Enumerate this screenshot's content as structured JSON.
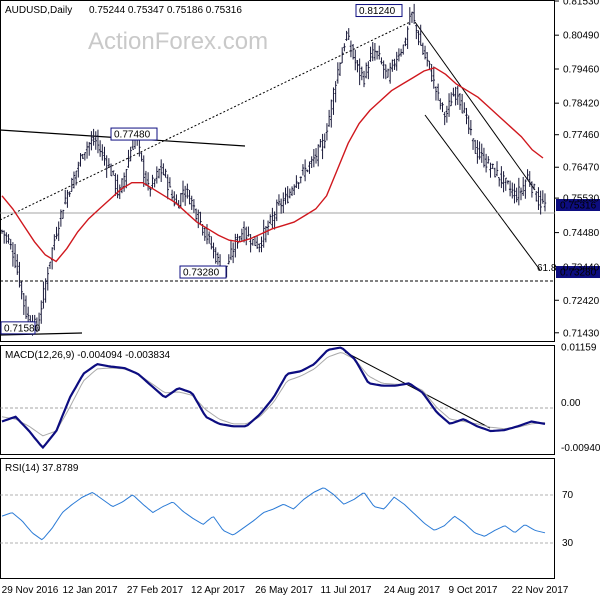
{
  "header": {
    "symbol": "AUDUSD,Daily",
    "ohlc": "0.75244 0.75347 0.75186 0.75316"
  },
  "watermark": "ActionForex.com",
  "colors": {
    "background": "#ffffff",
    "bars": "#1a1a3a",
    "ma": "#d0181e",
    "macd": "#0d0d80",
    "signal": "#aaaaaa",
    "rsi": "#2b7bd6",
    "price_tag_bg": "#0d0d80",
    "box_border": "#0d0d80"
  },
  "chart_data": [
    {
      "type": "ohlc",
      "panel": "price",
      "title": "AUDUSD,Daily",
      "ylim": [
        0.7118,
        0.815
      ],
      "y_ticks": [
        {
          "label": "0.81530",
          "value": 0.8153
        },
        {
          "label": "0.80490",
          "value": 0.8049
        },
        {
          "label": "0.79460",
          "value": 0.7946
        },
        {
          "label": "0.78420",
          "value": 0.7842
        },
        {
          "label": "0.77460",
          "value": 0.7746
        },
        {
          "label": "0.76470",
          "value": 0.7647
        },
        {
          "label": "0.75530",
          "value": 0.7553
        },
        {
          "label": "0.74480",
          "value": 0.7448
        },
        {
          "label": "0.73440",
          "value": 0.7344
        },
        {
          "label": "0.72420",
          "value": 0.7242
        },
        {
          "label": "0.71430",
          "value": 0.7143
        }
      ],
      "x_ticks": [
        "29 Nov 2016",
        "12 Jan 2017",
        "27 Feb 2017",
        "12 Apr 2017",
        "26 May 2017",
        "11 Jul 2017",
        "24 Aug 2017",
        "9 Oct 2017",
        "22 Nov 2017"
      ],
      "close_path": [
        0.7452,
        0.7428,
        0.738,
        0.73,
        0.7206,
        0.7175,
        0.716,
        0.725,
        0.735,
        0.743,
        0.75,
        0.7562,
        0.76,
        0.7652,
        0.77,
        0.772,
        0.773,
        0.769,
        0.766,
        0.762,
        0.756,
        0.7625,
        0.77,
        0.774,
        0.765,
        0.758,
        0.76,
        0.764,
        0.762,
        0.756,
        0.753,
        0.758,
        0.756,
        0.752,
        0.748,
        0.744,
        0.74,
        0.736,
        0.733,
        0.7368,
        0.742,
        0.745,
        0.744,
        0.742,
        0.741,
        0.745,
        0.748,
        0.752,
        0.754,
        0.756,
        0.76,
        0.762,
        0.764,
        0.766,
        0.769,
        0.772,
        0.78,
        0.79,
        0.798,
        0.805,
        0.799,
        0.794,
        0.792,
        0.798,
        0.8,
        0.796,
        0.792,
        0.796,
        0.8,
        0.802,
        0.8124,
        0.806,
        0.8,
        0.796,
        0.79,
        0.784,
        0.78,
        0.786,
        0.788,
        0.782,
        0.776,
        0.77,
        0.768,
        0.766,
        0.764,
        0.762,
        0.76,
        0.758,
        0.756,
        0.758,
        0.762,
        0.758,
        0.754,
        0.7532
      ],
      "last_price": "0.75316",
      "annotations": [
        {
          "label": "0.81240",
          "value": 0.8124
        },
        {
          "label": "0.77480",
          "value": 0.7748
        },
        {
          "label": "0.73280",
          "value": 0.7328
        },
        {
          "label": "0.71580",
          "value": 0.7158
        },
        {
          "label": "61.8",
          "value": 0.7328
        }
      ],
      "moving_average": [
        0.756,
        0.752,
        0.747,
        0.742,
        0.738,
        0.736,
        0.74,
        0.745,
        0.749,
        0.752,
        0.755,
        0.758,
        0.76,
        0.76,
        0.758,
        0.756,
        0.754,
        0.751,
        0.748,
        0.746,
        0.744,
        0.7425,
        0.742,
        0.743,
        0.7445,
        0.746,
        0.747,
        0.748,
        0.75,
        0.752,
        0.756,
        0.764,
        0.772,
        0.778,
        0.782,
        0.785,
        0.788,
        0.79,
        0.792,
        0.794,
        0.795,
        0.793,
        0.79,
        0.788,
        0.786,
        0.783,
        0.78,
        0.777,
        0.774,
        0.77,
        0.7675
      ]
    },
    {
      "type": "line",
      "panel": "macd",
      "title": "MACD(12,26,9) -0.004094 -0.003834",
      "ylim": [
        -0.0108,
        0.0118
      ],
      "y_ticks": [
        {
          "label": "0.01159",
          "value": 0.01159
        },
        {
          "label": "0.00",
          "value": 0.0
        },
        {
          "label": "-0.009408",
          "value": -0.009408
        }
      ],
      "series": [
        {
          "name": "MACD",
          "values": [
            -0.004,
            -0.003,
            -0.006,
            -0.0095,
            -0.006,
            0.001,
            0.006,
            0.008,
            0.0075,
            0.0072,
            0.006,
            0.0035,
            0.001,
            0.003,
            0.002,
            -0.003,
            -0.0045,
            -0.005,
            -0.005,
            -0.0025,
            0.001,
            0.006,
            0.0065,
            0.008,
            0.011,
            0.0115,
            0.009,
            0.004,
            0.0035,
            0.0035,
            0.004,
            0.002,
            -0.002,
            -0.0045,
            -0.0035,
            -0.005,
            -0.006,
            -0.0058,
            -0.005,
            -0.004,
            -0.0045
          ]
        },
        {
          "name": "Signal",
          "values": [
            -0.003,
            -0.0035,
            -0.005,
            -0.007,
            -0.006,
            -0.001,
            0.0045,
            0.007,
            0.0072,
            0.007,
            0.006,
            0.004,
            0.002,
            0.0022,
            0.0015,
            -0.0015,
            -0.0035,
            -0.0045,
            -0.0045,
            -0.003,
            0.0,
            0.0045,
            0.0055,
            0.007,
            0.0095,
            0.0105,
            0.009,
            0.0055,
            0.004,
            0.0038,
            0.0038,
            0.0025,
            -0.001,
            -0.0035,
            -0.004,
            -0.0045,
            -0.0052,
            -0.0055,
            -0.0052,
            -0.0045,
            -0.0042
          ]
        }
      ]
    },
    {
      "type": "line",
      "panel": "rsi",
      "title": "RSI(14) 37.8789",
      "ylim": [
        0,
        100
      ],
      "y_ticks": [
        {
          "label": "70",
          "value": 70
        },
        {
          "label": "30",
          "value": 30
        }
      ],
      "series": [
        {
          "name": "RSI",
          "values": [
            52,
            55,
            48,
            38,
            32,
            42,
            55,
            62,
            68,
            72,
            66,
            60,
            64,
            70,
            62,
            55,
            60,
            64,
            56,
            50,
            45,
            52,
            40,
            36,
            42,
            48,
            55,
            58,
            62,
            58,
            66,
            72,
            76,
            70,
            62,
            66,
            72,
            60,
            58,
            68,
            62,
            54,
            46,
            40,
            44,
            52,
            46,
            38,
            35,
            40,
            44,
            38,
            45,
            40,
            38
          ]
        }
      ]
    }
  ]
}
